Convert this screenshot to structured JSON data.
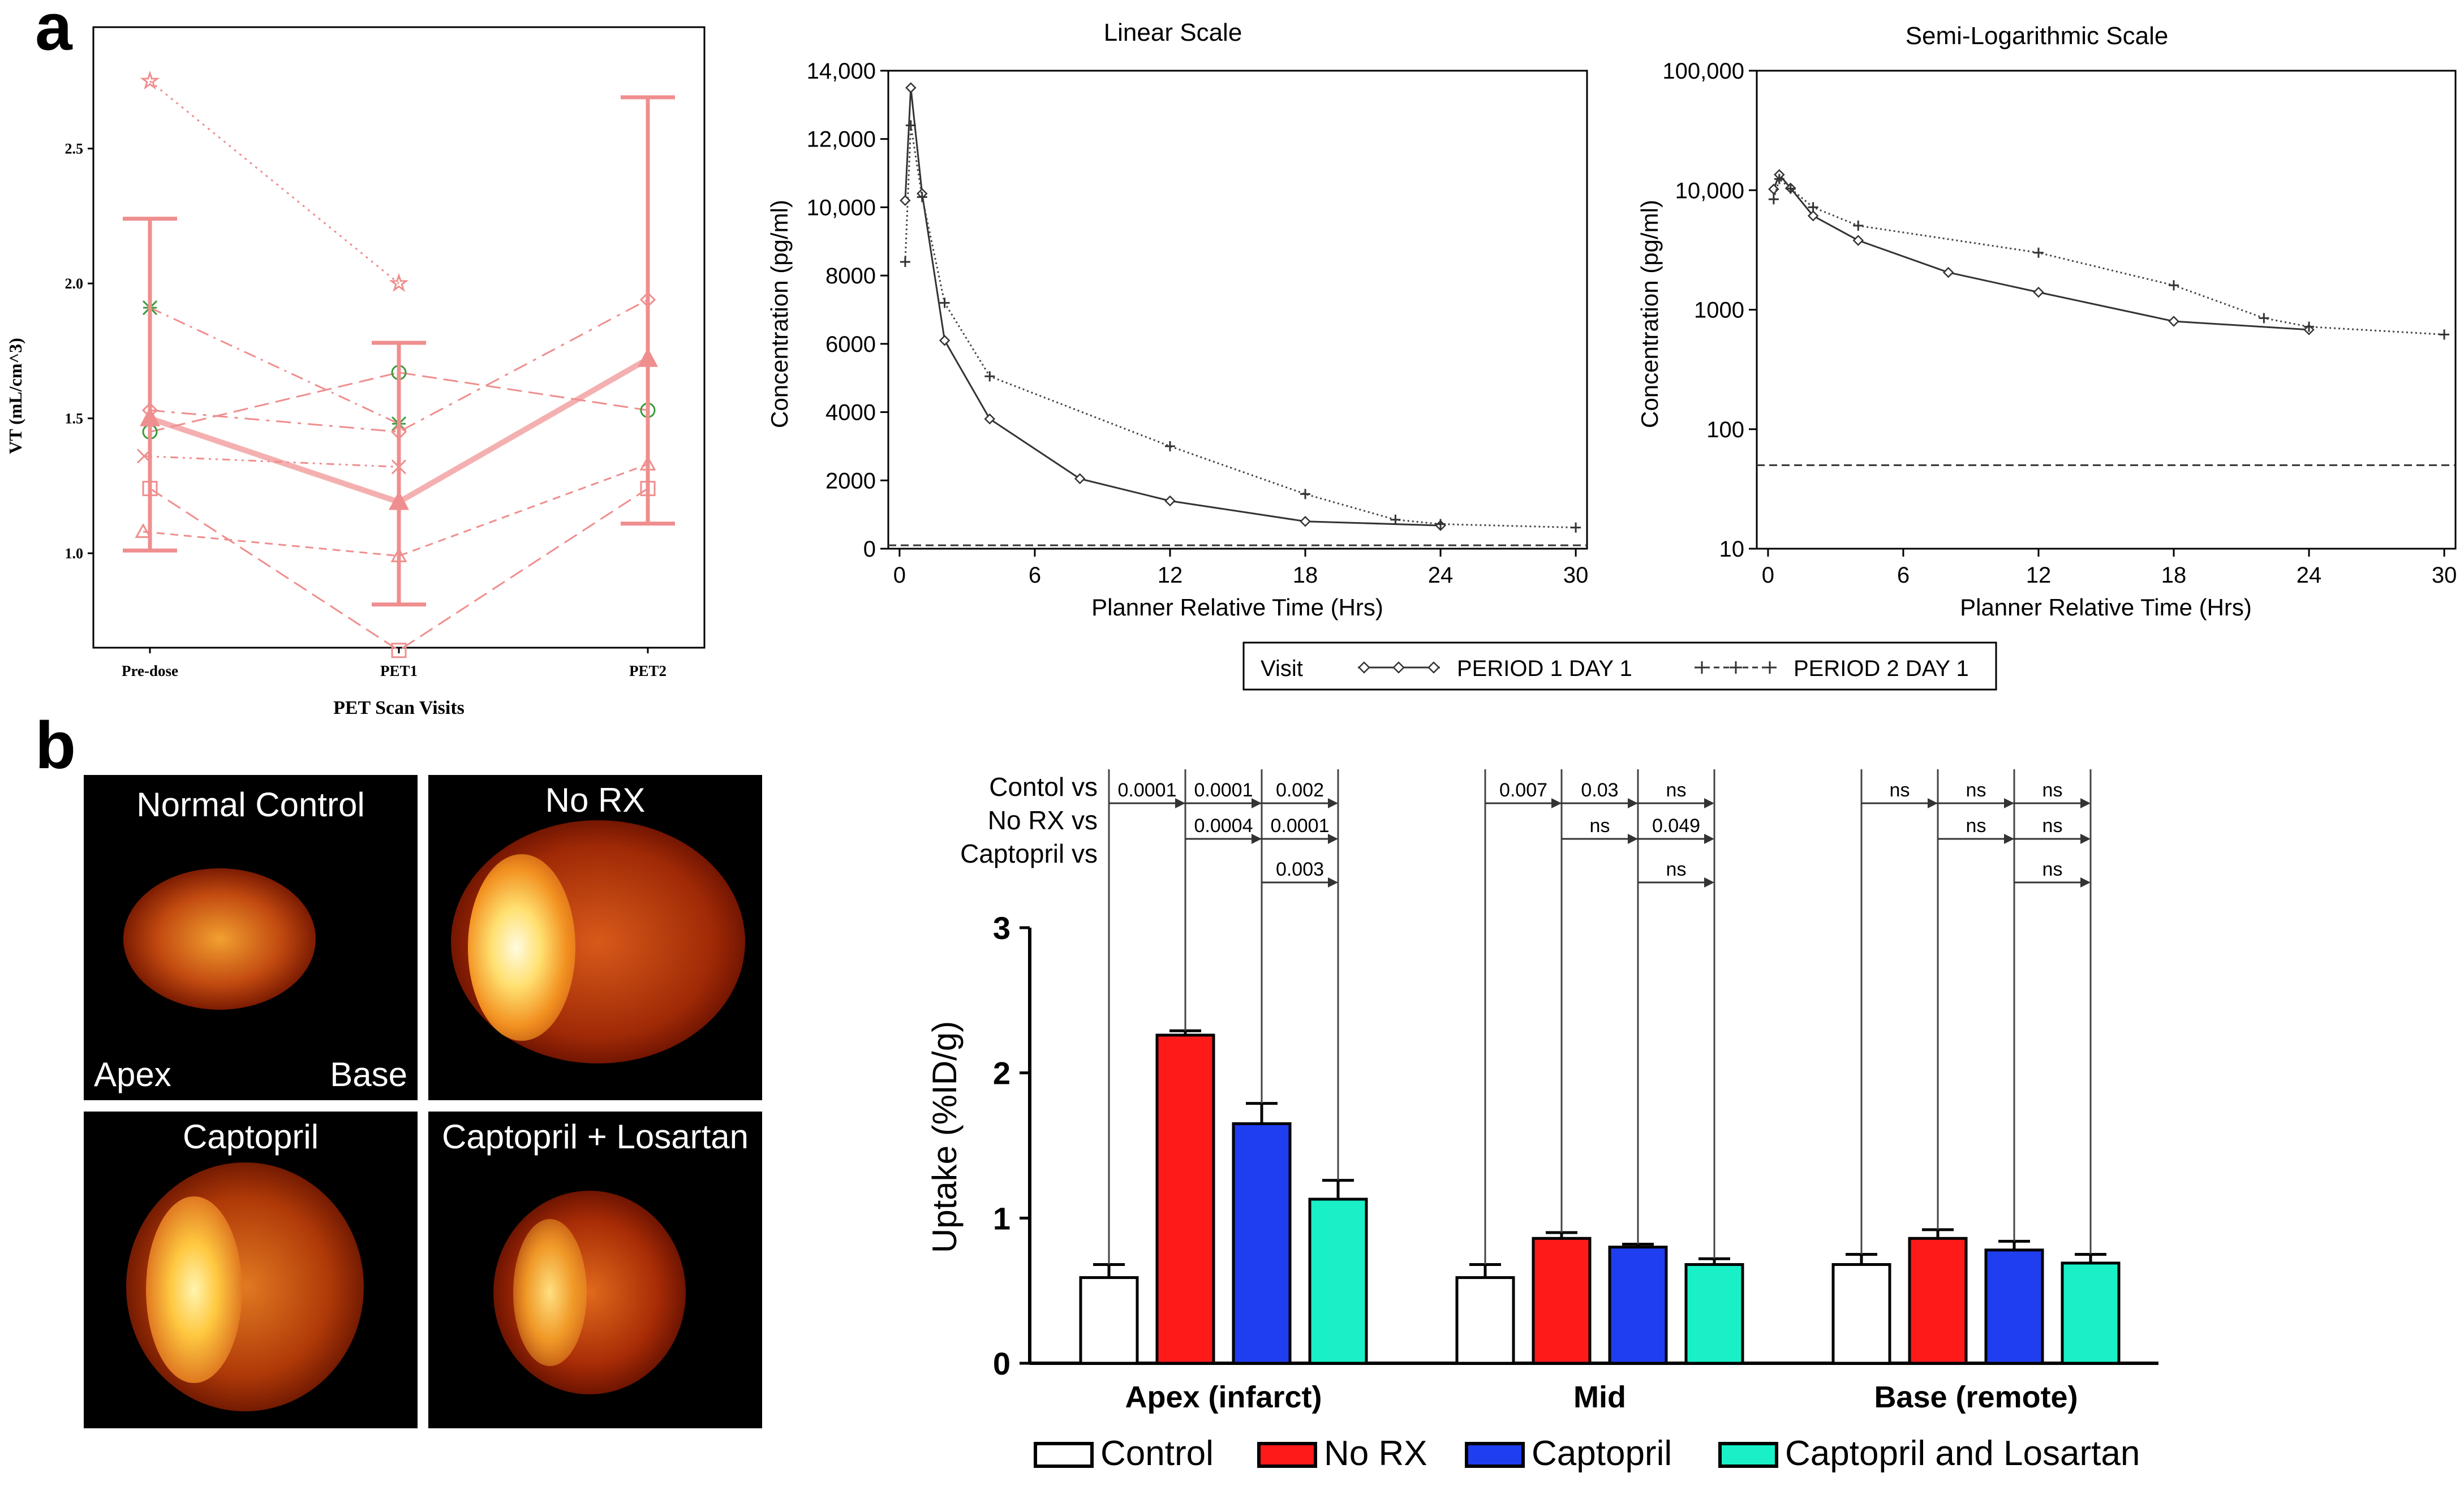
{
  "panel_labels": {
    "a": "a",
    "b": "b"
  },
  "colors": {
    "pet_pink": "#ef8e8e",
    "pet_green": "#3a9a3a",
    "control": "#ffffff",
    "norx": "#ff1a1a",
    "captopril": "#1f3ef0",
    "caplos": "#19f0c8"
  },
  "chart_data": [
    {
      "id": "pet",
      "type": "line",
      "title": "",
      "xlabel": "PET Scan Visits",
      "ylabel": "VT (mL/cm^3)",
      "categories": [
        "Pre-dose",
        "PET1",
        "PET2"
      ],
      "yticks": [
        "1.0",
        "1.5",
        "2.0",
        "2.5"
      ],
      "ylim": [
        0.65,
        2.95
      ],
      "subjects": [
        {
          "marker": "star",
          "values": [
            2.75,
            2.0,
            null
          ]
        },
        {
          "marker": "asterisk",
          "values": [
            1.91,
            1.48,
            null
          ]
        },
        {
          "marker": "circle",
          "values": [
            1.45,
            1.67,
            1.53
          ]
        },
        {
          "marker": "diamond",
          "values": [
            1.53,
            1.45,
            1.94
          ]
        },
        {
          "marker": "x",
          "values": [
            1.36,
            1.32,
            null
          ]
        },
        {
          "marker": "square",
          "values": [
            1.24,
            0.64,
            1.24
          ]
        },
        {
          "marker": "triangle",
          "values": [
            1.08,
            0.99,
            1.33
          ]
        }
      ],
      "mean": {
        "values": [
          1.5,
          1.19,
          1.72
        ],
        "lower": [
          1.01,
          0.81,
          1.11
        ],
        "upper": [
          2.24,
          1.78,
          2.69
        ]
      }
    },
    {
      "id": "linear",
      "type": "line",
      "title": "Linear Scale",
      "xlabel": "Planner Relative Time (Hrs)",
      "ylabel": "Concentration (pg/ml)",
      "xticks": [
        "0",
        "6",
        "12",
        "18",
        "24",
        "30"
      ],
      "yticks": [
        "0",
        "2000",
        "4000",
        "6000",
        "8000",
        "10,000",
        "12,000",
        "14,000"
      ],
      "xlim": [
        -0.5,
        30.5
      ],
      "ylim": [
        0,
        14000
      ],
      "lloq": 100,
      "series": [
        {
          "name": "PERIOD 1 DAY 1",
          "x": [
            0.25,
            0.5,
            1,
            2,
            4,
            8,
            12,
            18,
            24
          ],
          "y": [
            10200,
            13500,
            10400,
            6100,
            3800,
            2050,
            1400,
            800,
            680
          ]
        },
        {
          "name": "PERIOD 2 DAY 1",
          "x": [
            0.25,
            0.5,
            1,
            2,
            4,
            12,
            18,
            22,
            24,
            30
          ],
          "y": [
            8400,
            12400,
            10300,
            7200,
            5050,
            3000,
            1600,
            850,
            720,
            620
          ]
        }
      ]
    },
    {
      "id": "semilog",
      "type": "line",
      "title": "Semi-Logarithmic Scale",
      "xlabel": "Planner Relative Time (Hrs)",
      "ylabel": "Concentration (pg/ml)",
      "xticks": [
        "0",
        "6",
        "12",
        "18",
        "24",
        "30"
      ],
      "yticks": [
        "10",
        "100",
        "1000",
        "10,000",
        "100,000"
      ],
      "xlim": [
        -0.5,
        30.5
      ],
      "ylim": [
        10,
        100000
      ],
      "lloq": 50,
      "series": [
        {
          "name": "PERIOD 1 DAY 1",
          "x": [
            0.25,
            0.5,
            1,
            2,
            4,
            8,
            12,
            18,
            24
          ],
          "y": [
            10200,
            13500,
            10400,
            6100,
            3800,
            2050,
            1400,
            800,
            680
          ]
        },
        {
          "name": "PERIOD 2 DAY 1",
          "x": [
            0.25,
            0.5,
            1,
            2,
            4,
            12,
            18,
            22,
            24,
            30
          ],
          "y": [
            8400,
            12400,
            10300,
            7200,
            5050,
            3000,
            1600,
            850,
            720,
            620
          ]
        }
      ]
    },
    {
      "id": "uptake",
      "type": "bar",
      "title": "",
      "xlabel": "",
      "ylabel": "Uptake (%ID/g)",
      "categories": [
        "Apex (infarct)",
        "Mid",
        "Base (remote)"
      ],
      "yticks": [
        "0",
        "1",
        "2",
        "3"
      ],
      "ylim": [
        0,
        3
      ],
      "series": [
        {
          "name": "Control",
          "values": [
            0.59,
            0.59,
            0.68
          ],
          "errors": [
            0.09,
            0.09,
            0.07
          ]
        },
        {
          "name": "No RX",
          "values": [
            2.26,
            0.86,
            0.86
          ],
          "errors": [
            0.03,
            0.04,
            0.06
          ]
        },
        {
          "name": "Captopril",
          "values": [
            1.65,
            0.8,
            0.78
          ],
          "errors": [
            0.14,
            0.02,
            0.06
          ]
        },
        {
          "name": "Captopril and Losartan",
          "values": [
            1.13,
            0.68,
            0.69
          ],
          "errors": [
            0.13,
            0.04,
            0.06
          ]
        }
      ],
      "comparison_labels": [
        "Contol vs",
        "No RX vs",
        "Captopril vs"
      ],
      "comparisons": [
        {
          "group": 0,
          "from": 0,
          "to": 1,
          "label": "0.0001"
        },
        {
          "group": 0,
          "from": 0,
          "to": 2,
          "label": "0.0001"
        },
        {
          "group": 0,
          "from": 0,
          "to": 3,
          "label": "0.002"
        },
        {
          "group": 0,
          "from": 1,
          "to": 2,
          "label": "0.0004"
        },
        {
          "group": 0,
          "from": 1,
          "to": 3,
          "label": "0.0001"
        },
        {
          "group": 0,
          "from": 2,
          "to": 3,
          "label": "0.003"
        },
        {
          "group": 1,
          "from": 0,
          "to": 1,
          "label": "0.007"
        },
        {
          "group": 1,
          "from": 0,
          "to": 2,
          "label": "0.03"
        },
        {
          "group": 1,
          "from": 0,
          "to": 3,
          "label": "ns"
        },
        {
          "group": 1,
          "from": 1,
          "to": 2,
          "label": "ns"
        },
        {
          "group": 1,
          "from": 1,
          "to": 3,
          "label": "0.049"
        },
        {
          "group": 1,
          "from": 2,
          "to": 3,
          "label": "ns"
        },
        {
          "group": 2,
          "from": 0,
          "to": 1,
          "label": "ns"
        },
        {
          "group": 2,
          "from": 0,
          "to": 2,
          "label": "ns"
        },
        {
          "group": 2,
          "from": 0,
          "to": 3,
          "label": "ns"
        },
        {
          "group": 2,
          "from": 1,
          "to": 2,
          "label": "ns"
        },
        {
          "group": 2,
          "from": 1,
          "to": 3,
          "label": "ns"
        },
        {
          "group": 2,
          "from": 2,
          "to": 3,
          "label": "ns"
        }
      ]
    }
  ],
  "pk_legend": {
    "title": "Visit",
    "items": [
      "PERIOD 1 DAY 1",
      "PERIOD 2 DAY 1"
    ]
  },
  "scan_images": [
    {
      "label": "Normal Control",
      "corner_left": "Apex",
      "corner_right": "Base"
    },
    {
      "label": "No RX"
    },
    {
      "label": "Captopril"
    },
    {
      "label": "Captopril + Losartan"
    }
  ]
}
